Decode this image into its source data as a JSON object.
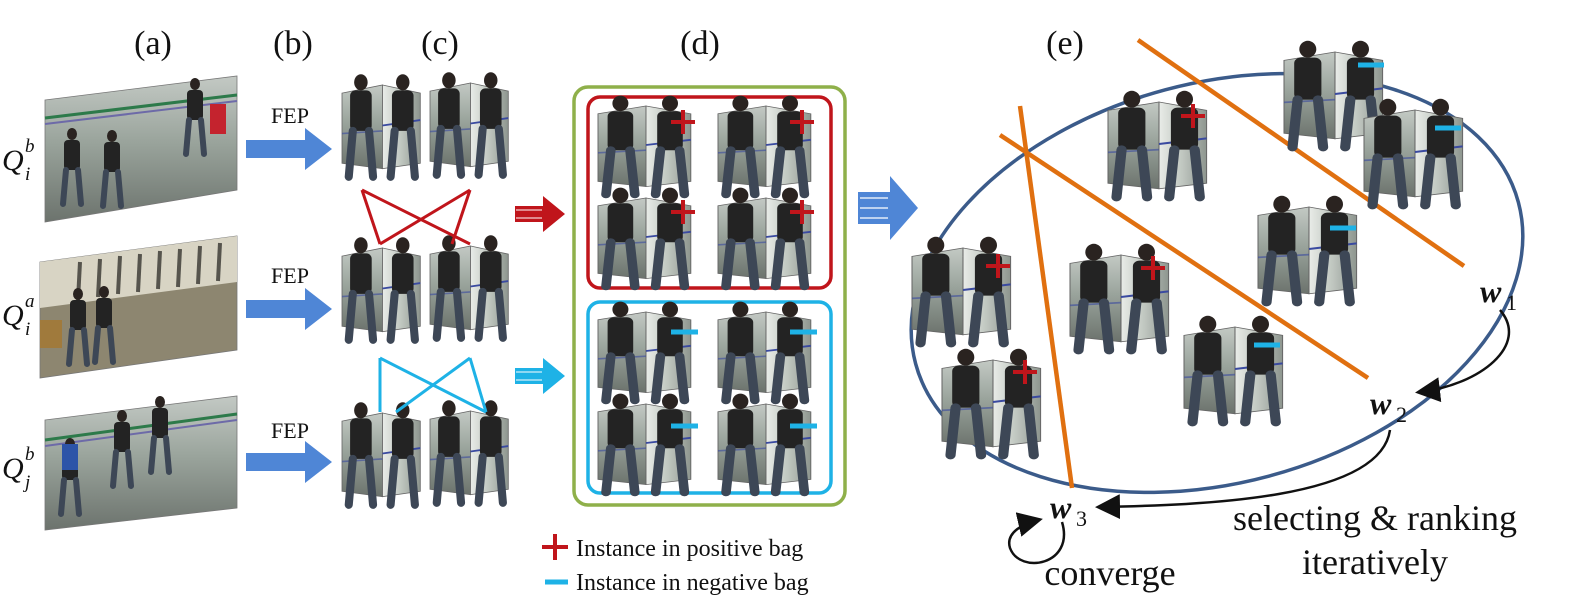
{
  "panels": {
    "a": "(a)",
    "b": "(b)",
    "c": "(c)",
    "d": "(d)",
    "e": "(e)"
  },
  "rows": [
    {
      "label_base": "Q",
      "label_sup": "b",
      "label_sub": "i",
      "arrow_text": "FEP"
    },
    {
      "label_base": "Q",
      "label_sup": "a",
      "label_sub": "i",
      "arrow_text": "FEP"
    },
    {
      "label_base": "Q",
      "label_sup": "b",
      "label_sub": "j",
      "arrow_text": "FEP"
    }
  ],
  "legend": {
    "positive": "Instance in positive bag",
    "negative": "Instance in negative bag"
  },
  "weights": {
    "w1": {
      "base": "w",
      "sub": "1"
    },
    "w2": {
      "base": "w",
      "sub": "2"
    },
    "w3": {
      "base": "w",
      "sub": "3"
    }
  },
  "annotations": {
    "converge": "converge",
    "selecting_line1": "selecting & ranking",
    "selecting_line2": "iteratively"
  },
  "colors": {
    "positive": "#c0151b",
    "negative": "#1eb2e6",
    "bag_frame": "#8fb04a",
    "arrow_blue": "#4f86d6",
    "ellipse": "#3b5b8a",
    "hyperplane": "#e07010"
  }
}
